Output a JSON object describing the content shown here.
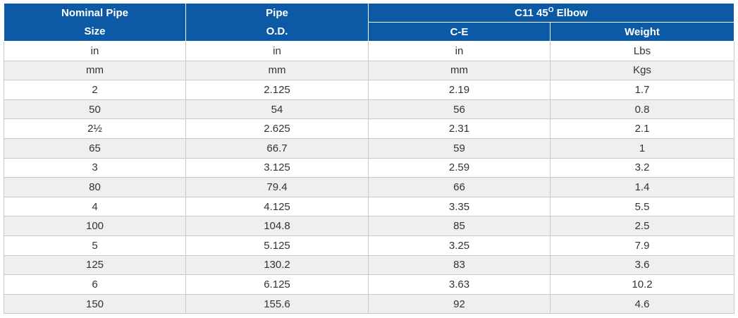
{
  "header": {
    "nominal_line1": "Nominal Pipe",
    "nominal_line2": "Size",
    "pipe_line1": "Pipe",
    "pipe_line2": "O.D.",
    "group_prefix": "C11 45",
    "group_sup": "O",
    "group_suffix": " Elbow",
    "col_ce": "C-E",
    "col_weight": "Weight"
  },
  "rows": [
    [
      "in",
      "in",
      "in",
      "Lbs"
    ],
    [
      "mm",
      "mm",
      "mm",
      "Kgs"
    ],
    [
      "2",
      "2.125",
      "2.19",
      "1.7"
    ],
    [
      "50",
      "54",
      "56",
      "0.8"
    ],
    [
      "2½",
      "2.625",
      "2.31",
      "2.1"
    ],
    [
      "65",
      "66.7",
      "59",
      "1"
    ],
    [
      "3",
      "3.125",
      "2.59",
      "3.2"
    ],
    [
      "80",
      "79.4",
      "66",
      "1.4"
    ],
    [
      "4",
      "4.125",
      "3.35",
      "5.5"
    ],
    [
      "100",
      "104.8",
      "85",
      "2.5"
    ],
    [
      "5",
      "5.125",
      "3.25",
      "7.9"
    ],
    [
      "125",
      "130.2",
      "83",
      "3.6"
    ],
    [
      "6",
      "6.125",
      "3.63",
      "10.2"
    ],
    [
      "150",
      "155.6",
      "92",
      "4.6"
    ]
  ],
  "colors": {
    "header_bg": "#0c5aa6",
    "row_alt_bg": "#efefef",
    "text": "#333333"
  }
}
